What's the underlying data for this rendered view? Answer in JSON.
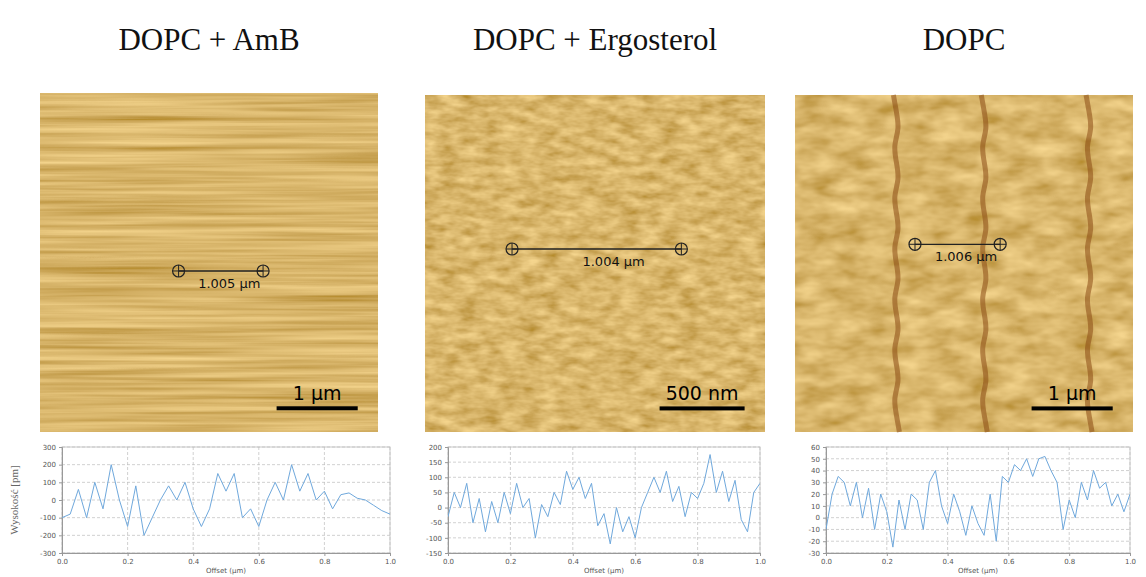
{
  "chart_data": [
    {
      "type": "line",
      "title": "DOPC + AmB",
      "y_label": "Wysokość [pm]",
      "x_label": "Offset (µm)",
      "image": {
        "measurement": "1.005 µm",
        "scale_bar": "1 µm"
      },
      "color": "#6fa8dc",
      "grid": true,
      "xlim": [
        0,
        1
      ],
      "ylim": [
        -300,
        300
      ],
      "xticks": [
        {
          "value": 0,
          "label": "0.0"
        },
        0.2,
        0.4,
        0.6,
        0.8,
        {
          "value": 1,
          "label": "1.0"
        }
      ],
      "yticks": [
        -300,
        -200,
        -100,
        0,
        100,
        200,
        300
      ],
      "x": [
        0,
        0.025,
        0.05,
        0.075,
        0.1,
        0.125,
        0.15,
        0.175,
        0.2,
        0.225,
        0.25,
        0.275,
        0.3,
        0.325,
        0.35,
        0.375,
        0.4,
        0.425,
        0.45,
        0.475,
        0.5,
        0.525,
        0.55,
        0.575,
        0.6,
        0.625,
        0.65,
        0.675,
        0.7,
        0.725,
        0.75,
        0.775,
        0.8,
        0.825,
        0.85,
        0.875,
        0.9,
        0.925,
        0.95,
        0.975,
        1
      ],
      "values": [
        -100,
        -80,
        60,
        -100,
        100,
        -50,
        200,
        0,
        -150,
        80,
        -200,
        -100,
        0,
        80,
        0,
        100,
        -50,
        -150,
        -50,
        150,
        50,
        150,
        -100,
        -50,
        -150,
        0,
        100,
        0,
        200,
        50,
        150,
        0,
        50,
        -50,
        30,
        40,
        10,
        0,
        -30,
        -60,
        -80
      ]
    },
    {
      "type": "line",
      "title": "DOPC + Ergosterol",
      "x_label": "Offset (µm)",
      "image": {
        "measurement": "1.004 µm",
        "scale_bar": "500 nm"
      },
      "color": "#6fa8dc",
      "grid": true,
      "xlim": [
        0,
        1
      ],
      "ylim": [
        -150,
        200
      ],
      "xticks": [
        {
          "value": 0,
          "label": "0.0"
        },
        0.2,
        0.4,
        0.6,
        0.8,
        {
          "value": 1,
          "label": "1.0"
        }
      ],
      "yticks": [
        -150,
        -100,
        -50,
        0,
        50,
        100,
        150,
        200
      ],
      "x": [
        0,
        0.02,
        0.04,
        0.06,
        0.08,
        0.1,
        0.12,
        0.14,
        0.16,
        0.18,
        0.2,
        0.22,
        0.24,
        0.26,
        0.28,
        0.3,
        0.32,
        0.34,
        0.36,
        0.38,
        0.4,
        0.42,
        0.44,
        0.46,
        0.48,
        0.5,
        0.52,
        0.54,
        0.56,
        0.58,
        0.6,
        0.62,
        0.64,
        0.66,
        0.68,
        0.7,
        0.72,
        0.74,
        0.76,
        0.78,
        0.8,
        0.82,
        0.84,
        0.86,
        0.88,
        0.9,
        0.92,
        0.94,
        0.96,
        0.98,
        1
      ],
      "values": [
        -30,
        50,
        0,
        80,
        -50,
        30,
        -80,
        20,
        -50,
        50,
        -20,
        80,
        0,
        30,
        -100,
        10,
        -30,
        50,
        10,
        120,
        60,
        100,
        30,
        80,
        -60,
        -20,
        -120,
        0,
        -80,
        -30,
        -100,
        0,
        50,
        100,
        50,
        120,
        20,
        70,
        -30,
        50,
        30,
        80,
        175,
        50,
        120,
        20,
        90,
        -40,
        -80,
        50,
        80
      ]
    },
    {
      "type": "line",
      "title": "DOPC",
      "x_label": "Offset (µm)",
      "image": {
        "measurement": "1.006 µm",
        "scale_bar": "1 µm"
      },
      "color": "#6fa8dc",
      "grid": true,
      "xlim": [
        0,
        1
      ],
      "ylim": [
        -30,
        60
      ],
      "xticks": [
        {
          "value": 0,
          "label": "0.0"
        },
        0.2,
        0.4,
        0.6,
        0.8,
        {
          "value": 1,
          "label": "1.0"
        }
      ],
      "yticks": [
        -30,
        -20,
        -10,
        0,
        10,
        20,
        30,
        40,
        50,
        60
      ],
      "x": [
        0,
        0.02,
        0.04,
        0.06,
        0.08,
        0.1,
        0.12,
        0.14,
        0.16,
        0.18,
        0.2,
        0.22,
        0.24,
        0.26,
        0.28,
        0.3,
        0.32,
        0.34,
        0.36,
        0.38,
        0.4,
        0.42,
        0.44,
        0.46,
        0.48,
        0.5,
        0.52,
        0.54,
        0.56,
        0.58,
        0.6,
        0.62,
        0.64,
        0.66,
        0.68,
        0.7,
        0.72,
        0.74,
        0.76,
        0.78,
        0.8,
        0.82,
        0.84,
        0.86,
        0.88,
        0.9,
        0.92,
        0.94,
        0.96,
        0.98,
        1
      ],
      "values": [
        -10,
        20,
        35,
        30,
        10,
        30,
        0,
        25,
        -10,
        20,
        5,
        -25,
        15,
        -10,
        20,
        15,
        -10,
        30,
        40,
        10,
        -5,
        20,
        5,
        -15,
        10,
        -5,
        -15,
        20,
        -20,
        35,
        30,
        45,
        40,
        50,
        35,
        50,
        52,
        40,
        30,
        -10,
        15,
        0,
        30,
        15,
        40,
        25,
        30,
        10,
        20,
        5,
        20
      ]
    }
  ]
}
